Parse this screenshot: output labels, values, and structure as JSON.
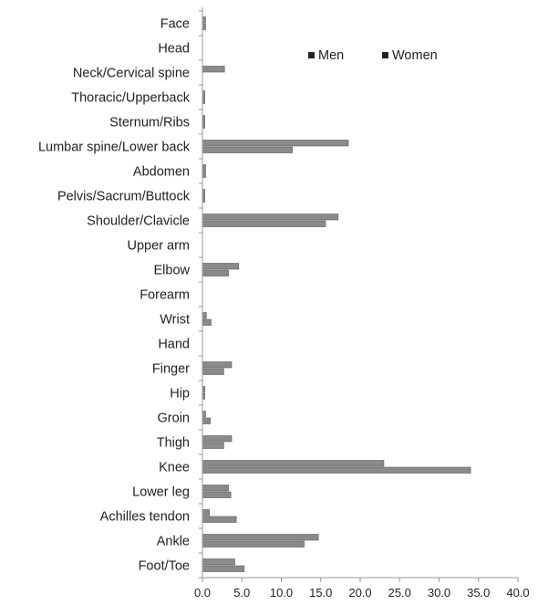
{
  "chart_data": {
    "type": "bar",
    "orientation": "horizontal",
    "categories": [
      "Face",
      "Head",
      "Neck/Cervical spine",
      "Thoracic/Upperback",
      "Sternum/Ribs",
      "Lumbar spine/Lower back",
      "Abdomen",
      "Pelvis/Sacrum/Buttock",
      "Shoulder/Clavicle",
      "Upper arm",
      "Elbow",
      "Forearm",
      "Wrist",
      "Hand",
      "Finger",
      "Hip",
      "Groin",
      "Thigh",
      "Knee",
      "Lower leg",
      "Achilles tendon",
      "Ankle",
      "Foot/Toe"
    ],
    "series": [
      {
        "name": "Men",
        "color": "#8a8a8a",
        "values": [
          0.4,
          0.0,
          2.8,
          0.3,
          0.3,
          18.5,
          0.4,
          0.3,
          17.2,
          0.0,
          4.6,
          0.0,
          0.5,
          0.0,
          3.7,
          0.3,
          0.4,
          3.7,
          23.0,
          3.3,
          0.9,
          14.7,
          4.1
        ]
      },
      {
        "name": "Women",
        "color": "#8a8a8a",
        "values": [
          0.4,
          0.0,
          0.0,
          0.3,
          0.3,
          11.4,
          0.4,
          0.3,
          15.6,
          0.0,
          3.3,
          0.0,
          1.1,
          0.0,
          2.7,
          0.3,
          1.0,
          2.7,
          34.0,
          3.6,
          4.3,
          12.9,
          5.3
        ]
      }
    ],
    "x_ticks": [
      "0.0",
      "5.0",
      "10.0",
      "15.0",
      "20.0",
      "25.0",
      "30.0",
      "35.0",
      "40.0"
    ],
    "xlim": [
      0,
      40
    ],
    "legend": {
      "placement": "top-right",
      "marker": "■"
    },
    "grid": false
  }
}
